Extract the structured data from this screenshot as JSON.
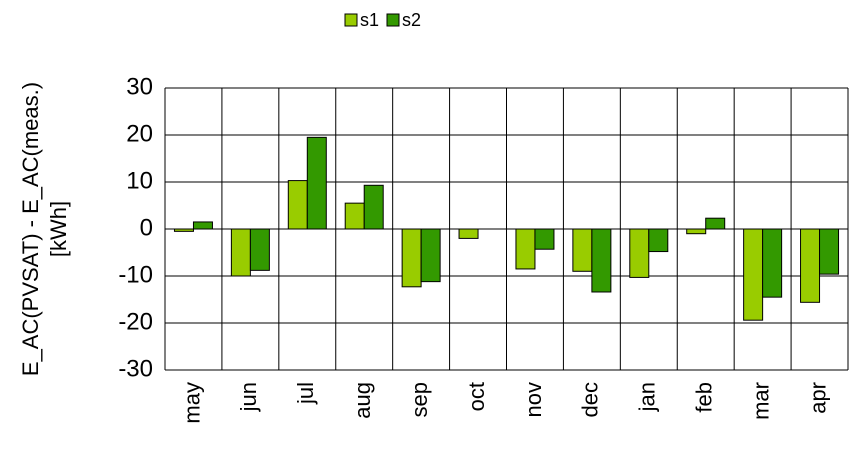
{
  "chart_data": {
    "type": "bar",
    "ylabel": [
      "E_AC(PVSAT) - E_AC(meas.)",
      "[kWh]"
    ],
    "categories": [
      "may",
      "jun",
      "jul",
      "aug",
      "sep",
      "oct",
      "nov",
      "dec",
      "jan",
      "feb",
      "mar",
      "apr"
    ],
    "series": [
      {
        "name": "s1",
        "color": "#99cc00",
        "values": [
          -0.5,
          -10,
          10.3,
          5.5,
          -12.3,
          -2,
          -8.5,
          -9,
          -10.3,
          -1,
          -19.4,
          -15.6
        ]
      },
      {
        "name": "s2",
        "color": "#339900",
        "values": [
          1.5,
          -8.8,
          19.5,
          9.3,
          -11.2,
          null,
          -4.3,
          -13.4,
          -4.8,
          2.3,
          -14.5,
          -9.6
        ]
      }
    ],
    "ylim": [
      -30,
      30
    ],
    "yticks": [
      -30,
      -20,
      -10,
      0,
      10,
      20,
      30
    ],
    "grid": true
  }
}
